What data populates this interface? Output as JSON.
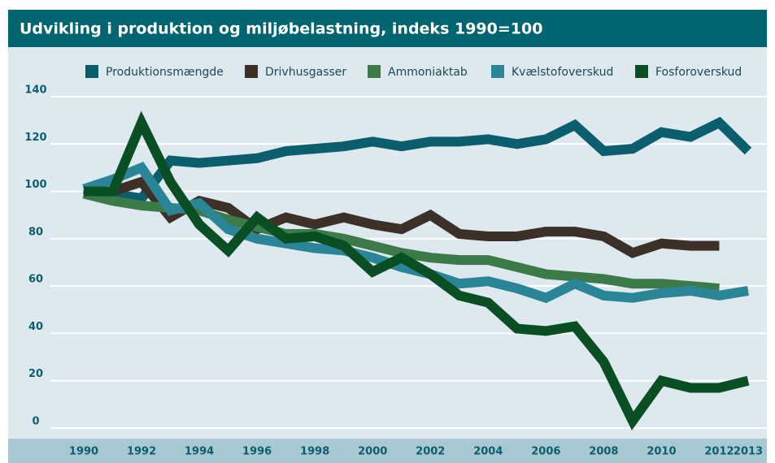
{
  "chart_data": {
    "type": "line",
    "title": "Udvikling i produktion og miljøbelastning, indeks 1990=100",
    "x": [
      1990,
      1991,
      1992,
      1993,
      1994,
      1995,
      1996,
      1997,
      1998,
      1999,
      2000,
      2001,
      2002,
      2003,
      2004,
      2005,
      2006,
      2007,
      2008,
      2009,
      2010,
      2011,
      2012,
      2013
    ],
    "series": [
      {
        "name": "Produktionsmængde",
        "color": "#0b5e6e",
        "values": [
          101,
          99,
          97,
          113,
          112,
          113,
          114,
          117,
          118,
          119,
          121,
          119,
          121,
          121,
          122,
          120,
          122,
          128,
          117,
          118,
          125,
          123,
          129,
          117
        ]
      },
      {
        "name": "Drivhusgasser",
        "color": "#3d3029",
        "values": [
          100,
          100,
          104,
          89,
          96,
          93,
          84,
          89,
          86,
          89,
          86,
          84,
          90,
          82,
          81,
          81,
          83,
          83,
          81,
          74,
          78,
          77,
          77,
          null
        ]
      },
      {
        "name": "Ammoniaktab",
        "color": "#3c7a4a",
        "values": [
          99,
          96,
          94,
          93,
          92,
          88,
          85,
          82,
          82,
          80,
          77,
          74,
          72,
          71,
          71,
          68,
          65,
          64,
          63,
          61,
          61,
          60,
          59,
          null
        ]
      },
      {
        "name": "Kvælstofoverskud",
        "color": "#2a8596",
        "values": [
          101,
          105,
          110,
          92,
          95,
          84,
          80,
          78,
          76,
          75,
          72,
          68,
          65,
          61,
          62,
          59,
          55,
          61,
          56,
          55,
          57,
          58,
          56,
          58
        ]
      },
      {
        "name": "Fosforoverskud",
        "color": "#0a4f24",
        "values": [
          100,
          100,
          129,
          104,
          86,
          75,
          89,
          80,
          81,
          77,
          66,
          72,
          65,
          56,
          53,
          42,
          41,
          43,
          28,
          3,
          20,
          17,
          17,
          20
        ]
      }
    ],
    "xlim": [
      1990,
      2013
    ],
    "xticks": [
      1990,
      1992,
      1994,
      1996,
      1998,
      2000,
      2002,
      2004,
      2006,
      2008,
      2010,
      2012,
      2013
    ],
    "ylim": [
      0,
      140
    ],
    "yticks": [
      0,
      20,
      40,
      60,
      80,
      100,
      120,
      140
    ],
    "grid": true
  }
}
